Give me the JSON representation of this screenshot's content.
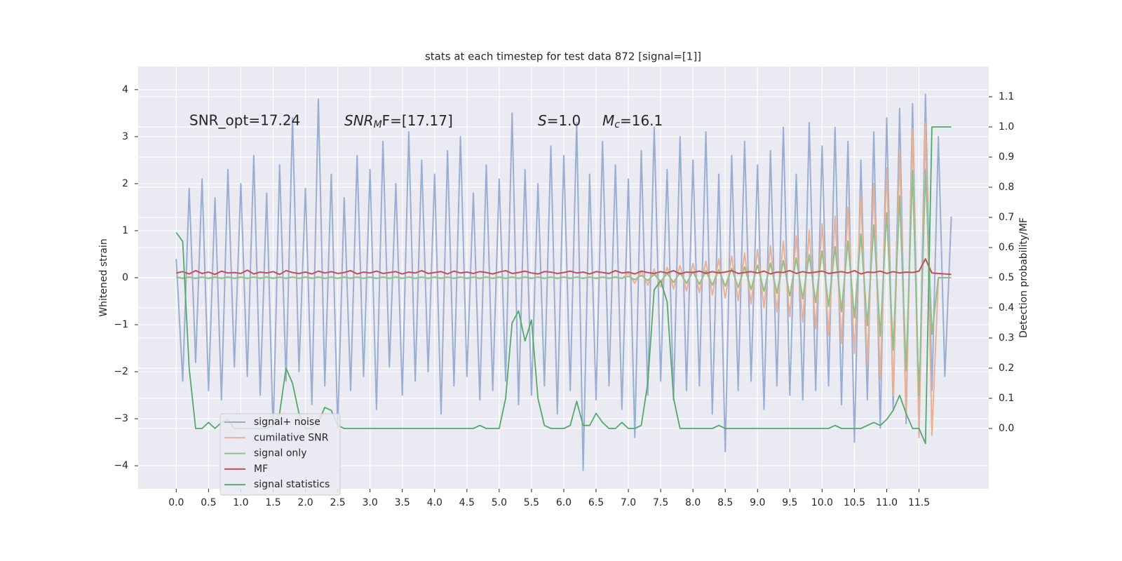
{
  "chart_data": {
    "type": "line",
    "title": "stats at each timestep for test data 872 [signal=[1]]",
    "y_label": "Whitened strain",
    "y2_label": "Detection probability/MF",
    "grid": true,
    "legend": "lower left",
    "xlim": [
      -0.59,
      12.58
    ],
    "ylim": [
      -4.49,
      4.49
    ],
    "y2lim": [
      -0.2,
      1.2
    ],
    "xticks": [
      {
        "value": 0,
        "label": "0.0"
      },
      {
        "value": 0.5,
        "label": "0.5"
      },
      {
        "value": 1,
        "label": "1.0"
      },
      {
        "value": 1.5,
        "label": "1.5"
      },
      {
        "value": 2,
        "label": "2.0"
      },
      {
        "value": 2.5,
        "label": "2.5"
      },
      {
        "value": 3,
        "label": "3.0"
      },
      {
        "value": 3.5,
        "label": "3.5"
      },
      {
        "value": 4,
        "label": "4.0"
      },
      {
        "value": 4.5,
        "label": "4.5"
      },
      {
        "value": 5,
        "label": "5.0"
      },
      {
        "value": 5.5,
        "label": "5.5"
      },
      {
        "value": 6,
        "label": "6.0"
      },
      {
        "value": 6.5,
        "label": "6.5"
      },
      {
        "value": 7,
        "label": "7.0"
      },
      {
        "value": 7.5,
        "label": "7.5"
      },
      {
        "value": 8,
        "label": "8.0"
      },
      {
        "value": 8.5,
        "label": "8.5"
      },
      {
        "value": 9,
        "label": "9.0"
      },
      {
        "value": 9.5,
        "label": "9.5"
      },
      {
        "value": 10,
        "label": "10.0"
      },
      {
        "value": 10.5,
        "label": "10.5"
      },
      {
        "value": 11,
        "label": "11.0"
      },
      {
        "value": 11.5,
        "label": "11.5"
      }
    ],
    "yticks": [
      {
        "value": -4,
        "label": "−4"
      },
      {
        "value": -3,
        "label": "−3"
      },
      {
        "value": -2,
        "label": "−2"
      },
      {
        "value": -1,
        "label": "−1"
      },
      0,
      1,
      2,
      3,
      4
    ],
    "y2ticks": [
      {
        "value": 0,
        "label": "0.0"
      },
      {
        "value": 0.1,
        "label": "0.1"
      },
      {
        "value": 0.2,
        "label": "0.2"
      },
      {
        "value": 0.3,
        "label": "0.3"
      },
      {
        "value": 0.4,
        "label": "0.4"
      },
      {
        "value": 0.5,
        "label": "0.5"
      },
      {
        "value": 0.6,
        "label": "0.6"
      },
      {
        "value": 0.7,
        "label": "0.7"
      },
      {
        "value": 0.8,
        "label": "0.8"
      },
      {
        "value": 0.9,
        "label": "0.9"
      },
      {
        "value": 1,
        "label": "1.0"
      },
      {
        "value": 1.1,
        "label": "1.1"
      }
    ],
    "annotations": [
      {
        "text": "SNR_opt=17.24"
      },
      {
        "text": "SNR",
        "sub": "M",
        "after": "F=[17.17]"
      },
      {
        "text": "S",
        "after": "=1.0"
      },
      {
        "text": "M",
        "sub": "c",
        "after": "=16.1"
      }
    ],
    "x": [
      0,
      0.1,
      0.2,
      0.3,
      0.4,
      0.5,
      0.6,
      0.7,
      0.8,
      0.9,
      1,
      1.1,
      1.2,
      1.3,
      1.4,
      1.5,
      1.6,
      1.7,
      1.8,
      1.9,
      2,
      2.1,
      2.2,
      2.3,
      2.4,
      2.5,
      2.6,
      2.7,
      2.8,
      2.9,
      3,
      3.1,
      3.2,
      3.3,
      3.4,
      3.5,
      3.6,
      3.7,
      3.8,
      3.9,
      4,
      4.1,
      4.2,
      4.3,
      4.4,
      4.5,
      4.6,
      4.7,
      4.8,
      4.9,
      5,
      5.1,
      5.2,
      5.3,
      5.4,
      5.5,
      5.6,
      5.7,
      5.8,
      5.9,
      6,
      6.1,
      6.2,
      6.3,
      6.4,
      6.5,
      6.6,
      6.7,
      6.8,
      6.9,
      7,
      7.1,
      7.2,
      7.3,
      7.4,
      7.5,
      7.6,
      7.7,
      7.8,
      7.9,
      8,
      8.1,
      8.2,
      8.3,
      8.4,
      8.5,
      8.6,
      8.7,
      8.8,
      8.9,
      9,
      9.1,
      9.2,
      9.3,
      9.4,
      9.5,
      9.6,
      9.7,
      9.8,
      9.9,
      10,
      10.1,
      10.2,
      10.3,
      10.4,
      10.5,
      10.6,
      10.7,
      10.8,
      10.9,
      11,
      11.1,
      11.2,
      11.3,
      11.4,
      11.5,
      11.6,
      11.7,
      11.8,
      11.9,
      12
    ],
    "series": [
      {
        "name": "signal+ noise",
        "color": "#9aaed3",
        "width": 2,
        "values": [
          0.4,
          -2.2,
          1.9,
          -1.8,
          2.1,
          -2.4,
          1.7,
          -2.6,
          2.3,
          -1.9,
          2.0,
          -2.1,
          2.6,
          -2.5,
          1.8,
          -3.3,
          2.4,
          -2.2,
          3.4,
          -2.0,
          1.9,
          -2.7,
          3.8,
          -2.3,
          2.2,
          -3.2,
          1.7,
          -2.4,
          2.6,
          -2.1,
          2.3,
          -2.8,
          2.9,
          -1.9,
          2.0,
          -2.5,
          3.1,
          -2.2,
          2.5,
          -2.0,
          2.2,
          -2.9,
          2.7,
          -2.3,
          3.0,
          -2.1,
          1.8,
          -2.6,
          2.4,
          -2.4,
          2.1,
          -2.2,
          3.5,
          -2.7,
          2.3,
          -2.5,
          2.0,
          -2.3,
          2.8,
          -2.9,
          2.6,
          -2.4,
          3.3,
          -4.1,
          2.2,
          -2.6,
          2.9,
          -2.3,
          2.4,
          -2.8,
          2.1,
          -3.4,
          2.7,
          -2.5,
          3.2,
          -2.2,
          2.3,
          -2.6,
          3.0,
          -2.4,
          2.5,
          -2.3,
          3.1,
          -2.9,
          2.2,
          -3.7,
          2.6,
          -2.4,
          2.9,
          -2.2,
          2.4,
          -2.8,
          2.7,
          -2.3,
          3.2,
          -2.5,
          2.2,
          -2.6,
          3.3,
          -2.4,
          2.8,
          -2.3,
          3.2,
          -2.7,
          2.9,
          -3.5,
          2.5,
          -2.6,
          3.1,
          -3.2,
          3.4,
          -2.8,
          3.6,
          -3.1,
          3.7,
          -3.2,
          3.9,
          -2.4,
          3.0,
          -2.1,
          1.3
        ]
      },
      {
        "name": "cumilative SNR",
        "color": "#eab093",
        "width": 2,
        "values": [
          0.02,
          -0.02,
          0.02,
          -0.02,
          0.02,
          -0.02,
          0.02,
          -0.02,
          0.02,
          -0.02,
          0.02,
          -0.02,
          0.02,
          -0.02,
          0.02,
          -0.02,
          0.02,
          -0.02,
          0.02,
          -0.02,
          0.02,
          -0.02,
          0.02,
          -0.02,
          0.02,
          -0.02,
          0.02,
          -0.02,
          0.02,
          -0.02,
          0.02,
          -0.02,
          0.02,
          -0.02,
          0.02,
          -0.02,
          0.02,
          -0.02,
          0.02,
          -0.02,
          0.02,
          -0.02,
          0.02,
          -0.02,
          0.02,
          -0.02,
          0.02,
          -0.02,
          0.02,
          -0.02,
          0.02,
          -0.02,
          0.02,
          -0.02,
          0.02,
          -0.02,
          0.02,
          -0.02,
          0.02,
          -0.02,
          0.02,
          -0.02,
          0.02,
          -0.02,
          0.02,
          -0.02,
          0.02,
          -0.02,
          0.02,
          -0.02,
          0.1,
          -0.12,
          0.14,
          -0.16,
          0.18,
          -0.2,
          0.22,
          -0.24,
          0.26,
          -0.28,
          0.3,
          -0.32,
          0.35,
          -0.37,
          0.4,
          -0.43,
          0.46,
          -0.49,
          0.52,
          -0.56,
          0.6,
          -0.64,
          0.68,
          -0.73,
          0.78,
          -0.83,
          0.89,
          -0.95,
          1.01,
          -1.08,
          1.15,
          -1.23,
          1.31,
          -1.4,
          1.5,
          -1.61,
          1.73,
          -1.86,
          2.0,
          -2.16,
          2.33,
          -2.51,
          2.71,
          -2.93,
          3.17,
          -3.4,
          3.3,
          -3.35,
          0.0,
          0.0,
          0.0
        ]
      },
      {
        "name": "signal only",
        "color": "#8fbf8f",
        "width": 2,
        "values": [
          0.01,
          -0.01,
          0.01,
          -0.01,
          0.01,
          -0.01,
          0.01,
          -0.01,
          0.01,
          -0.01,
          0.01,
          -0.01,
          0.01,
          -0.01,
          0.01,
          -0.01,
          0.01,
          -0.01,
          0.01,
          -0.01,
          0.01,
          -0.01,
          0.01,
          -0.01,
          0.01,
          -0.01,
          0.01,
          -0.01,
          0.01,
          -0.01,
          0.01,
          -0.01,
          0.01,
          -0.01,
          0.01,
          -0.01,
          0.01,
          -0.01,
          0.01,
          -0.01,
          0.01,
          -0.01,
          0.01,
          -0.01,
          0.01,
          -0.01,
          0.01,
          -0.01,
          0.01,
          -0.01,
          0.01,
          -0.01,
          0.01,
          -0.01,
          0.01,
          -0.01,
          0.01,
          -0.01,
          0.01,
          -0.01,
          0.01,
          -0.01,
          0.01,
          -0.01,
          0.01,
          -0.01,
          0.01,
          -0.01,
          0.01,
          -0.01,
          0.03,
          -0.04,
          0.05,
          -0.06,
          0.07,
          -0.08,
          0.09,
          -0.1,
          0.11,
          -0.12,
          0.13,
          -0.14,
          0.15,
          -0.16,
          0.17,
          -0.18,
          0.2,
          -0.21,
          0.23,
          -0.25,
          0.27,
          -0.29,
          0.31,
          -0.33,
          0.36,
          -0.39,
          0.42,
          -0.45,
          0.49,
          -0.53,
          0.57,
          -0.61,
          0.66,
          -0.72,
          0.78,
          -0.85,
          0.93,
          -1.02,
          1.12,
          -1.24,
          1.38,
          -1.54,
          1.74,
          -1.98,
          2.28,
          -2.5,
          2.3,
          -1.2,
          0.0,
          0.0,
          0.0
        ]
      },
      {
        "name": "MF",
        "color": "#c44e52",
        "width": 2,
        "values": [
          0.1,
          0.13,
          0.08,
          0.15,
          0.09,
          0.12,
          0.07,
          0.14,
          0.1,
          0.11,
          0.09,
          0.16,
          0.08,
          0.12,
          0.1,
          0.13,
          0.07,
          0.15,
          0.11,
          0.09,
          0.12,
          0.08,
          0.14,
          0.1,
          0.13,
          0.09,
          0.11,
          0.15,
          0.08,
          0.12,
          0.1,
          0.14,
          0.09,
          0.11,
          0.13,
          0.08,
          0.12,
          0.1,
          0.15,
          0.09,
          0.11,
          0.13,
          0.08,
          0.14,
          0.1,
          0.12,
          0.09,
          0.13,
          0.11,
          0.08,
          0.12,
          0.15,
          0.09,
          0.11,
          0.14,
          0.1,
          0.08,
          0.13,
          0.12,
          0.09,
          0.11,
          0.14,
          0.1,
          0.12,
          0.08,
          0.13,
          0.11,
          0.09,
          0.15,
          0.1,
          0.12,
          0.08,
          0.14,
          0.11,
          0.09,
          0.13,
          0.1,
          0.15,
          0.08,
          0.12,
          0.11,
          0.14,
          0.09,
          0.13,
          0.1,
          0.12,
          0.15,
          0.09,
          0.11,
          0.13,
          0.1,
          0.14,
          0.08,
          0.12,
          0.11,
          0.15,
          0.09,
          0.13,
          0.1,
          0.12,
          0.14,
          0.09,
          0.11,
          0.13,
          0.1,
          0.15,
          0.08,
          0.12,
          0.11,
          0.14,
          0.09,
          0.13,
          0.1,
          0.12,
          0.11,
          0.14,
          0.4,
          0.1,
          0.09,
          0.08,
          0.07
        ]
      },
      {
        "name": "signal statistics",
        "color": "#55a868",
        "width": 1.8,
        "axis": "y2",
        "values": [
          0.65,
          0.62,
          0.2,
          0.0,
          0.0,
          0.02,
          0.0,
          0.02,
          0.03,
          0.0,
          0.0,
          0.0,
          0.0,
          0.0,
          0.0,
          0.01,
          0.05,
          0.2,
          0.15,
          0.05,
          0.0,
          0.0,
          0.02,
          0.07,
          0.06,
          0.01,
          0.0,
          0.0,
          0.0,
          0.0,
          0.0,
          0.0,
          0.0,
          0.0,
          0.0,
          0.0,
          0.0,
          0.0,
          0.0,
          0.0,
          0.0,
          0.0,
          0.0,
          0.0,
          0.0,
          0.0,
          0.0,
          0.01,
          0.0,
          0.0,
          0.0,
          0.1,
          0.35,
          0.39,
          0.29,
          0.36,
          0.1,
          0.01,
          0.0,
          0.0,
          0.0,
          0.01,
          0.09,
          0.01,
          0.01,
          0.05,
          0.02,
          0.0,
          0.0,
          0.02,
          0.0,
          0.0,
          0.01,
          0.15,
          0.46,
          0.49,
          0.42,
          0.1,
          0.0,
          0.0,
          0.0,
          0.0,
          0.0,
          0.0,
          0.01,
          0.0,
          0.0,
          0.0,
          0.0,
          0.0,
          0.0,
          0.0,
          0.0,
          0.0,
          0.0,
          0.0,
          0.0,
          0.0,
          0.0,
          0.0,
          0.0,
          0.0,
          0.01,
          0.0,
          0.0,
          0.0,
          0.0,
          0.01,
          0.02,
          0.01,
          0.03,
          0.06,
          0.11,
          0.05,
          0.0,
          0.0,
          -0.05,
          1.0,
          1.0,
          1.0,
          1.0
        ]
      }
    ]
  }
}
